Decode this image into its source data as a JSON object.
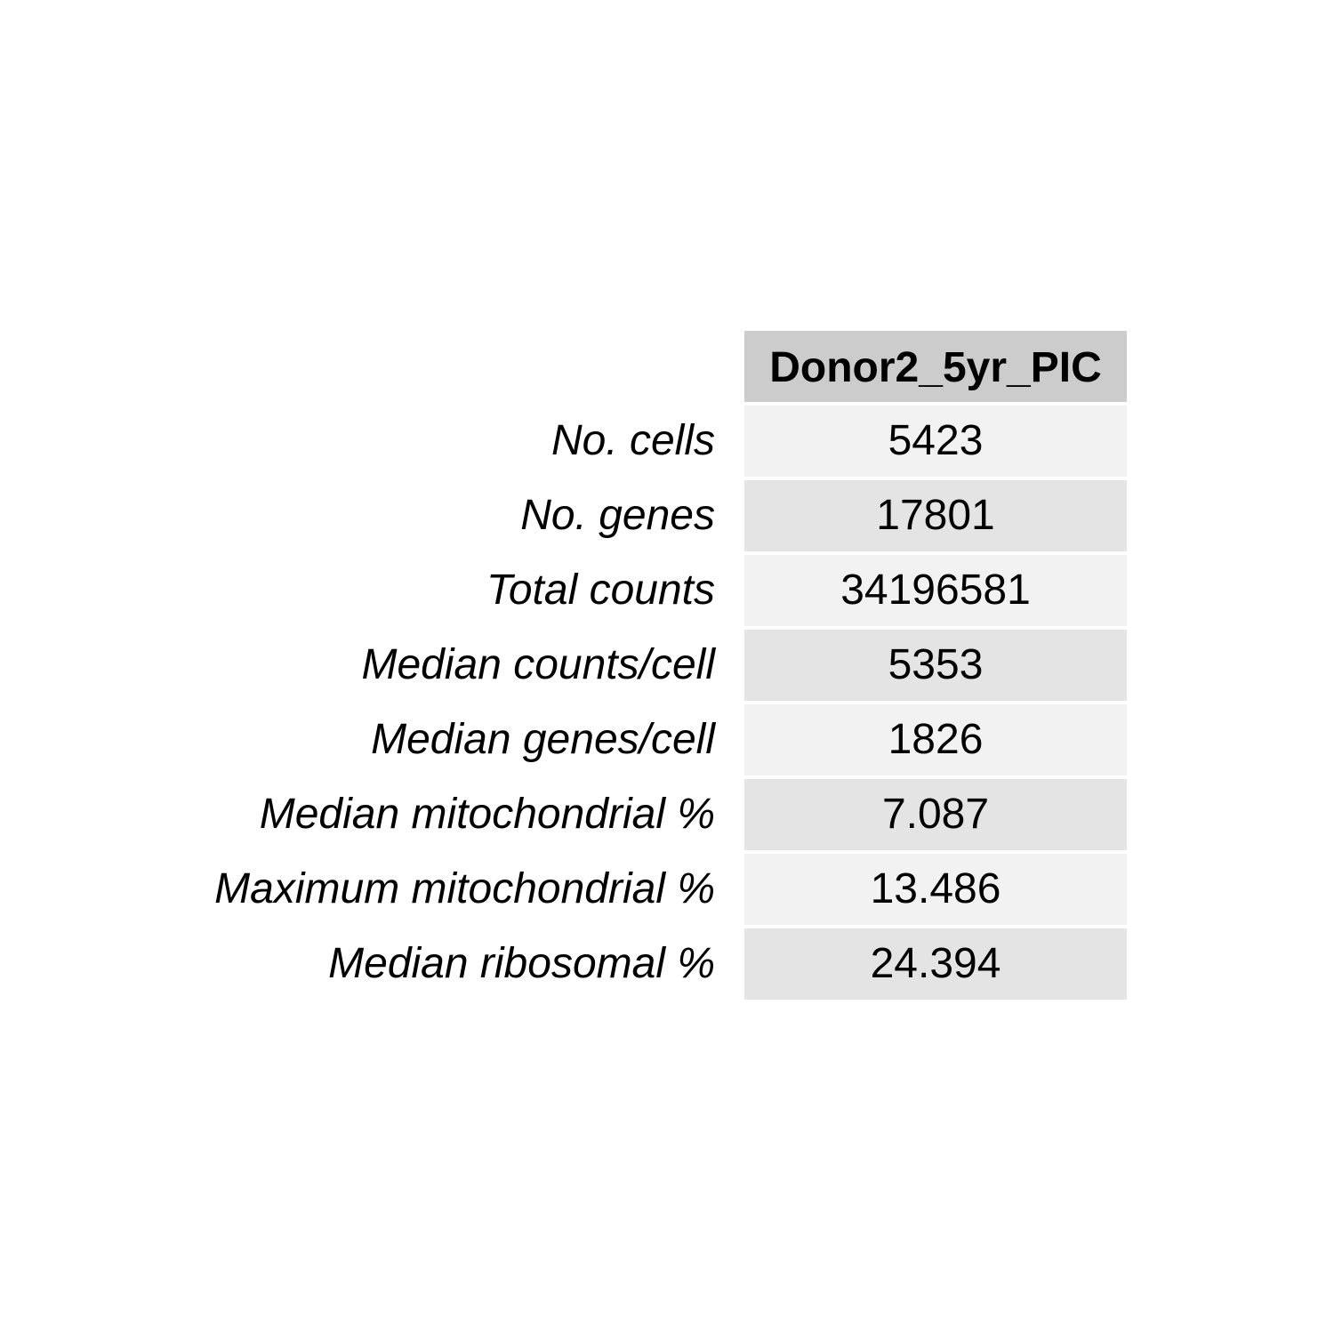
{
  "chart_data": {
    "type": "table",
    "columns": [
      "Donor2_5yr_PIC"
    ],
    "rows": [
      {
        "label": "No. cells",
        "value": "5423"
      },
      {
        "label": "No. genes",
        "value": "17801"
      },
      {
        "label": "Total counts",
        "value": "34196581"
      },
      {
        "label": "Median counts/cell",
        "value": "5353"
      },
      {
        "label": "Median genes/cell",
        "value": "1826"
      },
      {
        "label": "Median mitochondrial %",
        "value": "7.087"
      },
      {
        "label": "Maximum mitochondrial %",
        "value": "13.486"
      },
      {
        "label": "Median ribosomal %",
        "value": "24.394"
      }
    ],
    "header_color": "#cccccc",
    "row_colors": [
      "#f2f2f2",
      "#e4e4e4"
    ]
  }
}
